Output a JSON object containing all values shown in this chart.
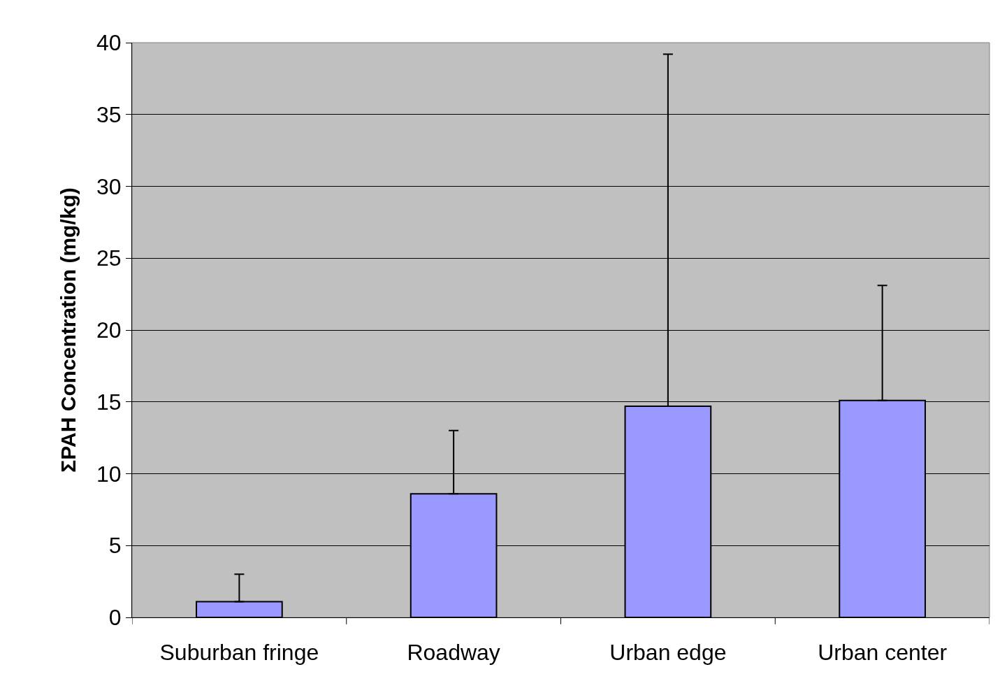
{
  "chart_data": {
    "type": "bar",
    "ylabel": "ΣPAH Concentration (mg/kg)",
    "categories": [
      "Suburban fringe",
      "Roadway",
      "Urban edge",
      "Urban center"
    ],
    "values": [
      1.1,
      8.6,
      14.7,
      15.1
    ],
    "errors": [
      [
        1.1,
        3.0
      ],
      [
        8.6,
        13.0
      ],
      [
        14.7,
        39.2
      ],
      [
        15.1,
        23.1
      ]
    ],
    "color": "#9999ff",
    "ylim": [
      0,
      40
    ],
    "yticks": [
      0,
      5,
      10,
      15,
      20,
      25,
      30,
      35,
      40
    ],
    "grid": "y"
  }
}
